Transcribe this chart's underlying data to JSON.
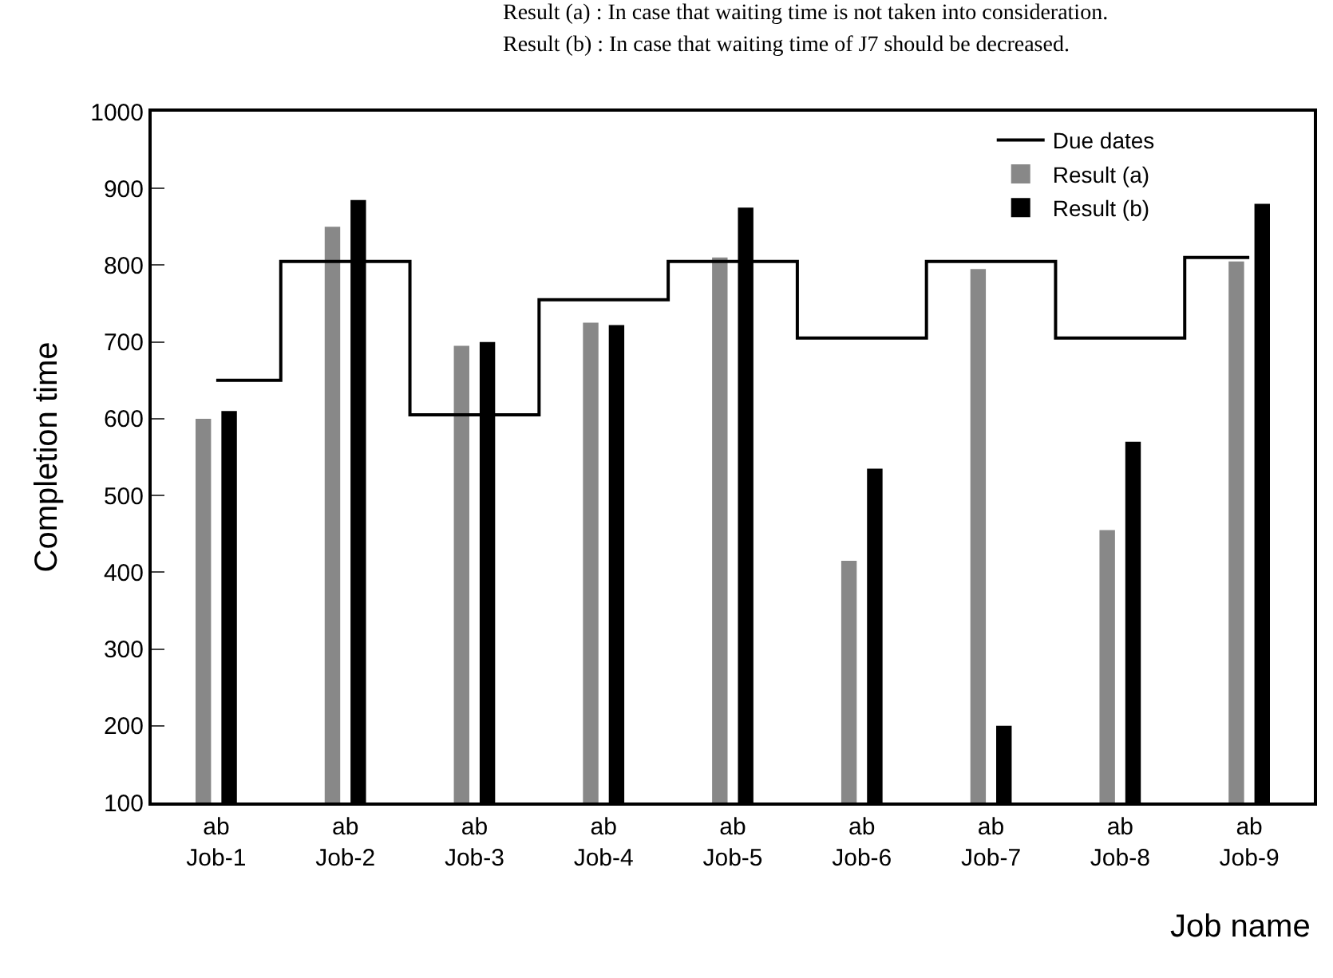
{
  "chart_data": {
    "type": "bar",
    "xlabel": "Job name",
    "ylabel": "Completion time",
    "annotations": [
      "Result (a) : In case that waiting time is not taken into consideration.",
      "Result (b) : In case that waiting time of J7 should be decreased."
    ],
    "categories": [
      "ab\nJob-1",
      "ab\nJob-2",
      "ab\nJob-3",
      "ab\nJob-4",
      "ab\nJob-5",
      "ab\nJob-6",
      "ab\nJob-7",
      "ab\nJob-8",
      "ab\nJob-9"
    ],
    "series": [
      {
        "name": "Due dates",
        "type": "step",
        "color": "#000000",
        "values": [
          650,
          805,
          605,
          755,
          805,
          705,
          805,
          705,
          810
        ]
      },
      {
        "name": "Result (a)",
        "color": "#888888",
        "values": [
          600,
          850,
          695,
          725,
          810,
          415,
          795,
          455,
          805
        ]
      },
      {
        "name": "Result (b)",
        "color": "#000000",
        "values": [
          610,
          885,
          700,
          722,
          875,
          535,
          200,
          570,
          880
        ]
      }
    ],
    "ylim": [
      100,
      1000
    ],
    "yticks": [
      100,
      200,
      300,
      400,
      500,
      600,
      700,
      800,
      900,
      1000
    ],
    "grid": false,
    "legend": "top right"
  }
}
